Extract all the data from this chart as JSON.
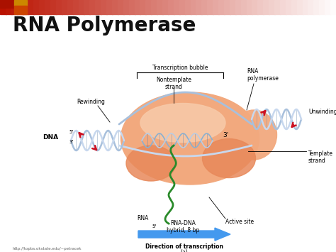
{
  "title": "RNA Polymerase",
  "title_fontsize": 20,
  "title_fontweight": "bold",
  "bg_color": "#ffffff",
  "blob_main_color": "#f2a97e",
  "blob_dark_color": "#e8895a",
  "blob_light_color": "#f7c9a8",
  "dna_color1": "#a8c0dc",
  "dna_color2": "#c8d8ee",
  "dna_bar_color": "#7090b0",
  "rna_color": "#2a8a2a",
  "arrow_blue": "#4499ee",
  "arrow_red": "#cc1122",
  "label_fontsize": 6.5,
  "small_fontsize": 5.5,
  "transcription_bubble_label": "Transcription bubble",
  "nontemplate_label": "Nontemplate\nstrand",
  "rna_polymerase_label": "RNA\npolymerase",
  "rewinding_label": "Rewinding",
  "unwinding_label": "Unwinding",
  "dna_label": "DNA",
  "template_label": "Template\nstrand",
  "rna_label": "RNA",
  "rna_dna_label": "RNA-DNA\nhybrid, 8 bp",
  "active_site_label": "Active site",
  "direction_label": "Direction of transcription",
  "diagram_label": "(a)",
  "url_label": "http://topbs.okstate.edu/~petracek",
  "header_colors": [
    "#bb1100",
    "#cc2200",
    "#dd5533",
    "#ee9977",
    "#ffccbb",
    "#ffffff"
  ]
}
